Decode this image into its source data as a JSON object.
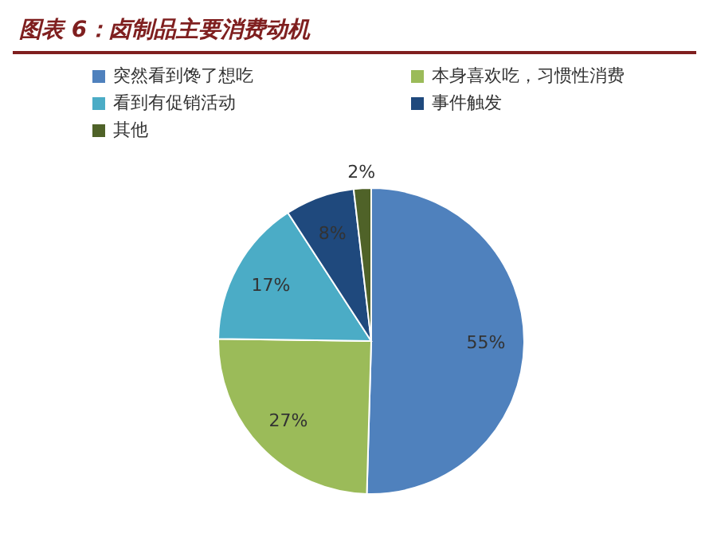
{
  "chart_data": {
    "type": "pie",
    "title": "图表 6：卤制品主要消费动机",
    "categories": [
      "突然看到馋了想吃",
      "本身喜欢吃，习惯性消费",
      "看到有促销活动",
      "事件触发",
      "其他"
    ],
    "values": [
      55,
      27,
      17,
      8,
      2
    ],
    "colors": [
      "#4f81bd",
      "#9bbb59",
      "#4bacc6",
      "#1f497d",
      "#4f6228"
    ],
    "value_labels": [
      "55%",
      "27%",
      "17%",
      "8%",
      "2%"
    ],
    "legend": "top"
  }
}
